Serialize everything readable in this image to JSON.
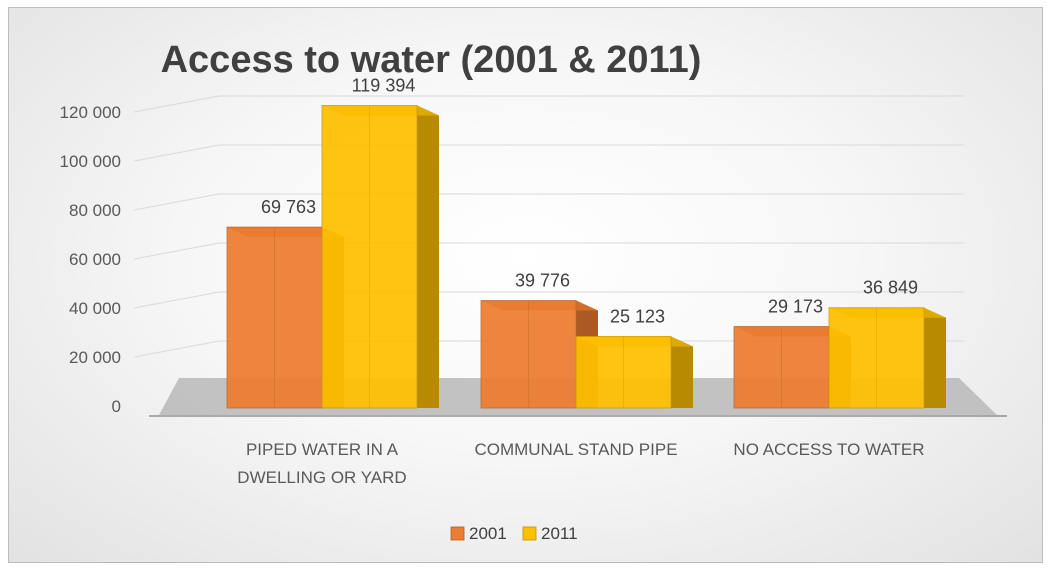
{
  "chart_data": {
    "type": "bar",
    "title": "Access to water (2001 & 2011)",
    "categories": [
      [
        "PIPED WATER IN A",
        "DWELLING OR YARD"
      ],
      [
        "COMMUNAL STAND PIPE"
      ],
      [
        "NO ACCESS TO WATER"
      ]
    ],
    "series": [
      {
        "name": "2001",
        "values": [
          69763,
          39776,
          29173
        ],
        "labels": [
          "69 763",
          "39 776",
          "29 173"
        ],
        "color": "#ED7D31"
      },
      {
        "name": "2011",
        "values": [
          119394,
          25123,
          36849
        ],
        "labels": [
          "119 394",
          "25 123",
          "36 849"
        ],
        "color": "#FFC000"
      }
    ],
    "yticks": [
      0,
      20000,
      40000,
      60000,
      80000,
      100000,
      120000
    ],
    "ytick_labels": [
      "0",
      "20 000",
      "40 000",
      "60 000",
      "80 000",
      "100 000",
      "120 000"
    ],
    "ylim": [
      0,
      120000
    ],
    "xlabel": "",
    "ylabel": "",
    "grid": true,
    "legend": "bottom",
    "style": "3d-clustered-column"
  }
}
